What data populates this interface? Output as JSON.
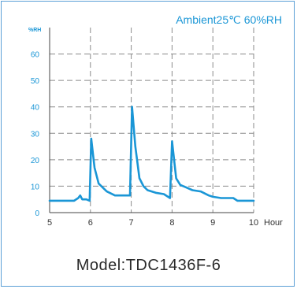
{
  "chart_data": {
    "type": "line",
    "title": "Ambient25℃ 60%RH",
    "ylabel": "%RH",
    "xlabel": "Hour",
    "xlim": [
      5,
      10
    ],
    "ylim": [
      0,
      70
    ],
    "x_ticks": [
      "5",
      "6",
      "7",
      "8",
      "9",
      "10"
    ],
    "y_ticks": [
      "0",
      "10",
      "20",
      "30",
      "40",
      "50",
      "60"
    ],
    "grid": "dashed",
    "series": [
      {
        "color": "#1a96d6",
        "x": [
          5.0,
          5.6,
          5.7,
          5.75,
          5.8,
          5.9,
          5.98,
          5.98,
          6.02,
          6.1,
          6.2,
          6.3,
          6.4,
          6.6,
          6.9,
          6.97,
          6.97,
          7.02,
          7.1,
          7.2,
          7.3,
          7.4,
          7.6,
          7.8,
          7.95,
          7.95,
          8.0,
          8.1,
          8.2,
          8.35,
          8.5,
          8.7,
          8.9,
          9.0,
          9.2,
          9.5,
          9.6,
          10.0
        ],
        "y": [
          4.5,
          4.5,
          5.5,
          6.5,
          5.0,
          5.0,
          4.5,
          4.5,
          28.0,
          17.0,
          11.0,
          9.5,
          8.0,
          6.5,
          6.5,
          6.5,
          6.5,
          40.0,
          25.0,
          13.0,
          10.0,
          8.5,
          7.5,
          7.0,
          5.5,
          5.5,
          27.0,
          13.0,
          10.5,
          9.5,
          8.5,
          8.0,
          6.5,
          6.0,
          5.5,
          5.5,
          4.5,
          4.5
        ]
      }
    ]
  },
  "model_label": "Model:TDC1436F-6"
}
